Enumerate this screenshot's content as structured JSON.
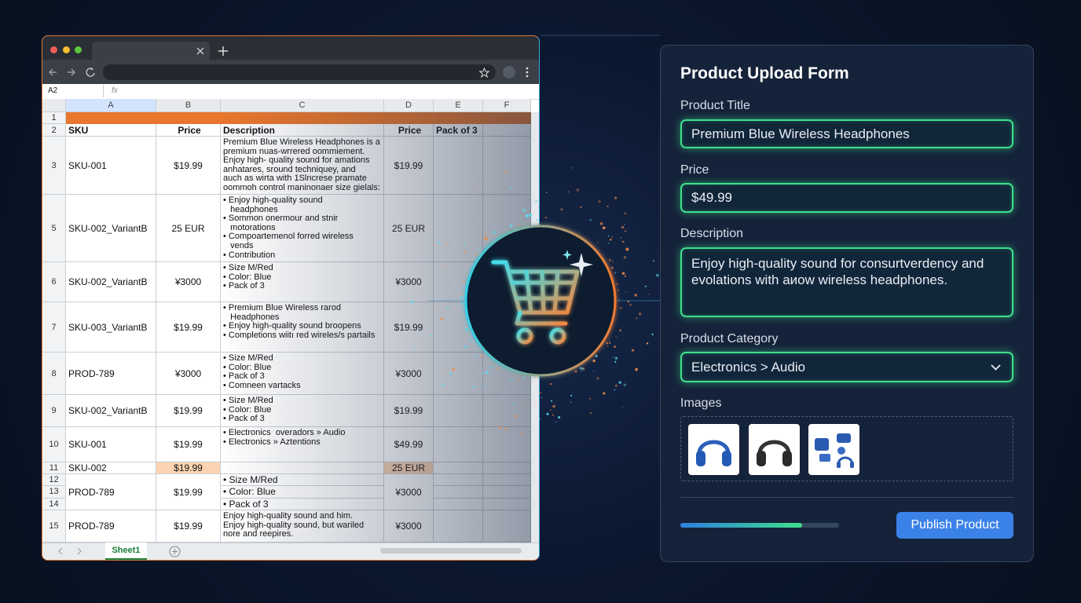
{
  "spreadsheet": {
    "name_box": "A2",
    "fx": "fx",
    "columns": [
      "A",
      "B",
      "C",
      "D",
      "E",
      "F"
    ],
    "first_row_num": "1",
    "header_row": {
      "num": "2",
      "cells": [
        "SKU",
        "Price",
        "Description",
        "Price",
        "Pack of 3"
      ]
    },
    "rows": [
      {
        "nums": [
          "3"
        ],
        "sku": "SKU-001",
        "price": "$19.99",
        "description": [
          "Premium Blue Wireless Headphones is a",
          "premium nuas-wrrered oommiement.",
          "Enjoy high- quality sound for amations",
          "anhatares, sround techniquey, and",
          "auch as wirta with 1Slncrese pramate",
          "oommoh control maninonaer size gielals:"
        ],
        "price2": "$19.99"
      },
      {
        "nums": [
          "5"
        ],
        "sku": "SKU-002_VariantB",
        "price": "25 EUR",
        "description": [
          "• Enjoy high-quality sound",
          "   headphones",
          "• Sommon onermour and stnir",
          "   motorations",
          "• Compoartemenol forred wireless",
          "   vends",
          "• Contribution"
        ],
        "price2": "25 EUR"
      },
      {
        "nums": [
          "6"
        ],
        "sku": "SKU-002_VariantB",
        "price": "¥3000",
        "description": [
          "• Size M/Red",
          "• Color: Blue",
          "• Pack of 3"
        ],
        "price2": "¥3000"
      },
      {
        "nums": [
          "7"
        ],
        "sku": "SKU-003_VariantB",
        "price": "$19.99",
        "description": [
          "• Premium Blue Wireless rarod",
          "   Headphones",
          "• Enjoy high-quality sound broopens",
          "• Completions wiitı red wireles/s partails"
        ],
        "price2": "$19.99"
      },
      {
        "nums": [
          "8"
        ],
        "sku": "PROD-789",
        "price": "¥3000",
        "description": [
          "• Size M/Red",
          "• Color: Blue",
          "• Pack of 3",
          "• Comneen vartacks"
        ],
        "price2": "¥3000"
      },
      {
        "nums": [
          "9"
        ],
        "sku": "SKU-002_VariantB",
        "price": "$19.99",
        "description": [
          "• Size M/Red",
          "• Color: Blue",
          "• Pack of 3"
        ],
        "price2": "$19.99"
      },
      {
        "nums": [
          "10"
        ],
        "sku": "SKU-001",
        "price": "$19.99",
        "description": [
          "• Electronics  overadors » Audio",
          "• Electronics » Aztentions"
        ],
        "price2": "$49.99"
      },
      {
        "nums": [
          "11"
        ],
        "sku": "SKU-002",
        "price": "$19.99",
        "description": [],
        "price2": "25 EUR",
        "highlight": true
      },
      {
        "nums": [
          "12",
          "13",
          "14"
        ],
        "sku": "PROD-789",
        "price": "$19.99",
        "description": [
          "• Size M/Red",
          "• Color: Blue",
          "• Pack of 3"
        ],
        "price2": "¥3000"
      },
      {
        "nums": [
          "15"
        ],
        "sku": "PROD-789",
        "price": "$19.99",
        "description": [
          "Enjoy high-quality sound and him.",
          "Enjoy high-quality sound, but wariled",
          "nore and reepires."
        ],
        "price2": "¥3000"
      }
    ],
    "sheet_tab": "Sheet1"
  },
  "form": {
    "title": "Product Upload Form",
    "fields": [
      {
        "label": "Product Title",
        "value": "Premium Blue Wireless Headphones"
      },
      {
        "label": "Price",
        "value": "$49.99"
      },
      {
        "label": "Description",
        "value": "Enjoy high-quality sound for consurtverdency and evolations with aиow wireless headphones."
      },
      {
        "label": "Product Category",
        "value": "Electronics > Audio"
      }
    ],
    "images_label": "Images",
    "button": "Publish Product"
  }
}
